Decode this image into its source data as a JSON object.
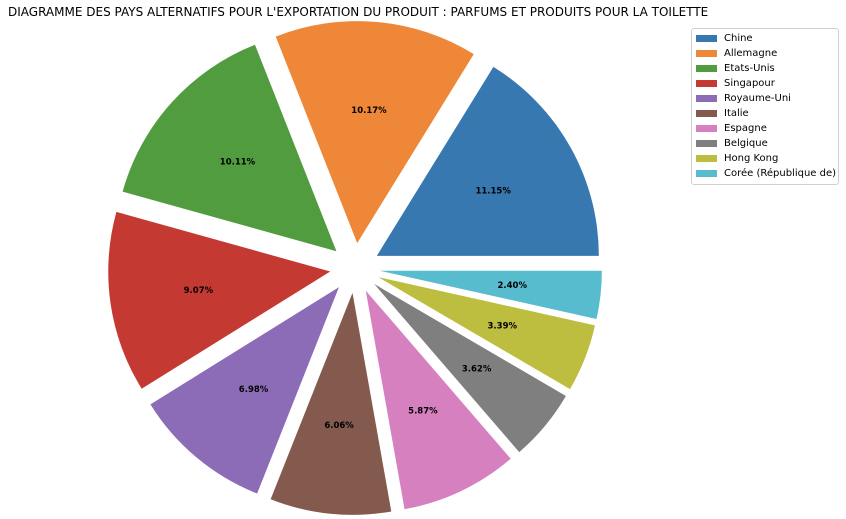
{
  "chart_data": {
    "type": "pie",
    "title": "DIAGRAMME DES PAYS ALTERNATIFS POUR L'EXPORTATION DU PRODUIT : PARFUMS ET PRODUITS POUR LA TOILETTE",
    "legend_position": "top-right",
    "exploded": true,
    "start_angle_deg": 0,
    "direction": "counterclockwise",
    "slices": [
      {
        "label": "Chine",
        "value": 11.15,
        "display": "11.15%",
        "color": "#3878b0"
      },
      {
        "label": "Allemagne",
        "value": 10.17,
        "display": "10.17%",
        "color": "#ee8737"
      },
      {
        "label": "Etats-Unis",
        "value": 10.11,
        "display": "10.11%",
        "color": "#519c3e"
      },
      {
        "label": "Singapour",
        "value": 9.07,
        "display": "9.07%",
        "color": "#c43a32"
      },
      {
        "label": "Royaume-Uni",
        "value": 6.98,
        "display": "6.98%",
        "color": "#8d6cb7"
      },
      {
        "label": "Italie",
        "value": 6.06,
        "display": "6.06%",
        "color": "#84594e"
      },
      {
        "label": "Espagne",
        "value": 5.87,
        "display": "5.87%",
        "color": "#d680bf"
      },
      {
        "label": "Belgique",
        "value": 3.62,
        "display": "3.62%",
        "color": "#7f7f7f"
      },
      {
        "label": "Hong Kong",
        "value": 3.39,
        "display": "3.39%",
        "color": "#bdbd40"
      },
      {
        "label": "Corée (République de)",
        "value": 2.4,
        "display": "2.40%",
        "color": "#57bccd"
      }
    ]
  }
}
